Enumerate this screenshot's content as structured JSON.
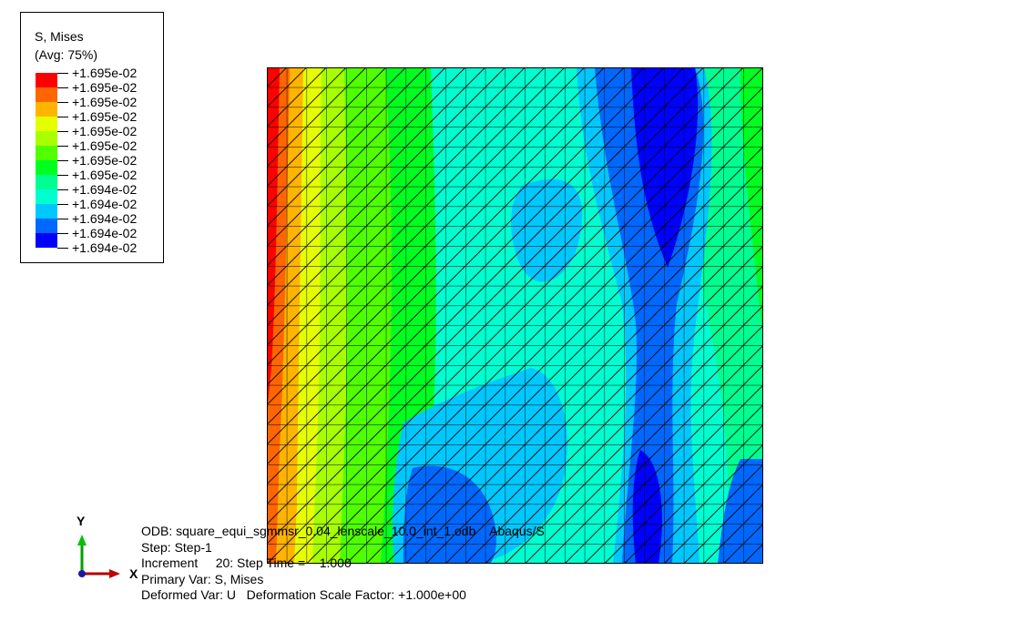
{
  "legend": {
    "title": "S, Mises",
    "subtitle": "(Avg: 75%)",
    "labels": [
      "+1.695e-02",
      "+1.695e-02",
      "+1.695e-02",
      "+1.695e-02",
      "+1.695e-02",
      "+1.695e-02",
      "+1.695e-02",
      "+1.695e-02",
      "+1.694e-02",
      "+1.694e-02",
      "+1.694e-02",
      "+1.694e-02",
      "+1.694e-02"
    ],
    "colors": [
      "#ff0000",
      "#ff6600",
      "#ffb400",
      "#e6ff00",
      "#a8ff00",
      "#50ff00",
      "#00ff20",
      "#00ff90",
      "#00ffd0",
      "#00c8ff",
      "#0068ff",
      "#0000ff"
    ]
  },
  "info": {
    "odb": "ODB: square_equi_sgmmsr_0.04_lenscale_10.0_int_1.odb    Abaqus/S",
    "step": "Step: Step-1",
    "increment": "Increment     20: Step Time =    1.000",
    "primary_var": "Primary Var: S, Mises",
    "deformed_var": "Deformed Var: U   Deformation Scale Factor: +1.000e+00"
  },
  "triad": {
    "y": "Y",
    "x": "X"
  }
}
